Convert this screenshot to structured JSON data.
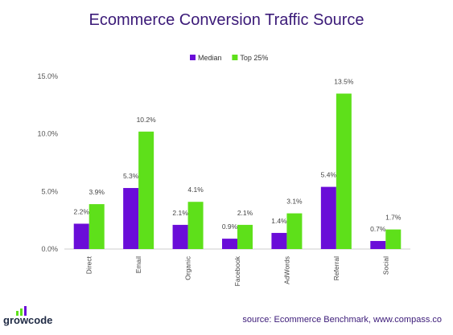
{
  "title": "Ecommerce Conversion Traffic Source",
  "brand": "growcode",
  "source": "source: Ecommerce Benchmark, www.compass.co",
  "colors": {
    "median": "#6a0dd8",
    "top25": "#5ee01a",
    "title": "#3b1a78"
  },
  "chart_data": {
    "type": "bar",
    "title": "Ecommerce Conversion Traffic Source",
    "categories": [
      "Direct",
      "Email",
      "Organic",
      "Facebook",
      "AdWords",
      "Referral",
      "Social"
    ],
    "series": [
      {
        "name": "Median",
        "values": [
          2.2,
          5.3,
          2.1,
          0.9,
          1.4,
          5.4,
          0.7
        ],
        "labels": [
          "2.2%",
          "5.3%",
          "2.1%",
          "0.9%",
          "1.4%",
          "5.4%",
          "0.7%"
        ]
      },
      {
        "name": "Top 25%",
        "values": [
          3.9,
          10.2,
          4.1,
          2.1,
          3.1,
          13.5,
          1.7
        ],
        "labels": [
          "3.9%",
          "10.2%",
          "4.1%",
          "2.1%",
          "3.1%",
          "13.5%",
          "1.7%"
        ]
      }
    ],
    "yticks": [
      0,
      5,
      10,
      15
    ],
    "ytick_labels": [
      "0.0%",
      "5.0%",
      "10.0%",
      "15.0%"
    ],
    "ylim": [
      0,
      15
    ],
    "legend": "top-center",
    "grid": false
  }
}
